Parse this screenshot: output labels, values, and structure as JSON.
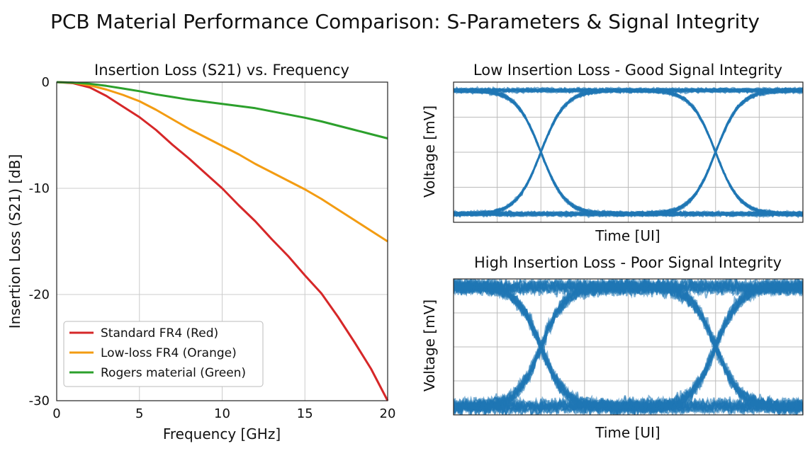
{
  "title": "PCB Material Performance Comparison: S-Parameters & Signal Integrity",
  "colors": {
    "red": "#d62728",
    "orange": "#f39c12",
    "green": "#2ca02c",
    "eye": "#1f77b4"
  },
  "chart_data": [
    {
      "type": "line",
      "title": "Insertion Loss (S21) vs. Frequency",
      "xlabel": "Frequency [GHz]",
      "ylabel": "Insertion Loss (S21) [dB]",
      "xlim": [
        0,
        20
      ],
      "ylim": [
        -30,
        0
      ],
      "xticks": [
        0,
        5,
        10,
        15,
        20
      ],
      "yticks": [
        0,
        -10,
        -20,
        -30
      ],
      "grid": true,
      "legend": "bottom-left",
      "x": [
        0,
        1,
        2,
        3,
        4,
        5,
        6,
        7,
        8,
        9,
        10,
        11,
        12,
        13,
        14,
        15,
        16,
        17,
        18,
        19,
        20
      ],
      "series": [
        {
          "name": "Standard FR4 (Red)",
          "color": "#d62728",
          "values": [
            0,
            -0.1,
            -0.5,
            -1.3,
            -2.3,
            -3.3,
            -4.5,
            -5.9,
            -7.2,
            -8.6,
            -10.0,
            -11.6,
            -13.1,
            -14.8,
            -16.4,
            -18.2,
            -19.9,
            -22.1,
            -24.5,
            -27.0,
            -30.0
          ]
        },
        {
          "name": "Low-loss FR4 (Orange)",
          "color": "#f39c12",
          "values": [
            0,
            -0.05,
            -0.3,
            -0.7,
            -1.2,
            -1.8,
            -2.6,
            -3.5,
            -4.4,
            -5.2,
            -6.0,
            -6.8,
            -7.7,
            -8.5,
            -9.3,
            -10.1,
            -11.0,
            -12.0,
            -13.0,
            -14.0,
            -15.0
          ]
        },
        {
          "name": "Rogers material (Green)",
          "color": "#2ca02c",
          "values": [
            0,
            -0.05,
            -0.15,
            -0.35,
            -0.6,
            -0.85,
            -1.15,
            -1.4,
            -1.65,
            -1.85,
            -2.05,
            -2.25,
            -2.45,
            -2.75,
            -3.05,
            -3.35,
            -3.7,
            -4.1,
            -4.5,
            -4.9,
            -5.3
          ]
        }
      ]
    },
    {
      "type": "scatter",
      "title": "Low Insertion Loss - Good Signal Integrity",
      "xlabel": "Time [UI]",
      "ylabel": "Voltage [mV]",
      "color": "#1f77b4",
      "grid": true,
      "eye_opening": 0.87,
      "noise": 0.02
    },
    {
      "type": "scatter",
      "title": "High Insertion Loss - Poor Signal Integrity",
      "xlabel": "Time [UI]",
      "ylabel": "Voltage [mV]",
      "color": "#1f77b4",
      "grid": true,
      "eye_opening": 0.44,
      "noise": 0.1
    }
  ]
}
